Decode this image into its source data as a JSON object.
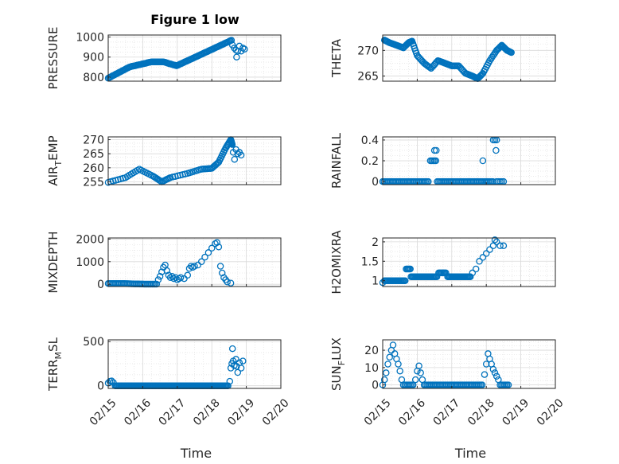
{
  "figure_title": "Figure 1 low",
  "x_ticks": [
    "02/15",
    "02/16",
    "02/17",
    "02/18",
    "02/19",
    "02/20"
  ],
  "xlabel": "Time",
  "marker_color": "#0072BD",
  "chart_data": [
    {
      "type": "scatter",
      "ylabel": "PRESSURE",
      "ylabel_sub": "",
      "ylabel_tail": "",
      "yticks": [
        "800",
        "900",
        "1000"
      ],
      "ylim": [
        780,
        1010
      ],
      "xlim": [
        "02/15",
        "02/20"
      ],
      "grid": true,
      "x": [],
      "y": []
    },
    {
      "type": "scatter",
      "ylabel": "THETA",
      "ylabel_sub": "",
      "ylabel_tail": "",
      "yticks": [
        "265",
        "270"
      ],
      "ylim": [
        264,
        273
      ],
      "xlim": [
        "02/15",
        "02/20"
      ],
      "grid": true,
      "x": [],
      "y": []
    },
    {
      "type": "scatter",
      "ylabel": "AIR",
      "ylabel_sub": "T",
      "ylabel_tail": "EMP",
      "yticks": [
        "255",
        "260",
        "265",
        "270"
      ],
      "ylim": [
        254,
        271
      ],
      "xlim": [
        "02/15",
        "02/20"
      ],
      "grid": true,
      "x": [],
      "y": []
    },
    {
      "type": "scatter",
      "ylabel": "RAINFALL",
      "ylabel_sub": "",
      "ylabel_tail": "",
      "yticks": [
        "0",
        "0.2",
        "0.4"
      ],
      "ylim": [
        -0.03,
        0.43
      ],
      "xlim": [
        "02/15",
        "02/20"
      ],
      "grid": true,
      "x": [],
      "y": []
    },
    {
      "type": "scatter",
      "ylabel": "MIXDEPTH",
      "ylabel_sub": "",
      "ylabel_tail": "",
      "yticks": [
        "0",
        "1000",
        "2000"
      ],
      "ylim": [
        -100,
        2050
      ],
      "xlim": [
        "02/15",
        "02/20"
      ],
      "grid": true,
      "x": [],
      "y": []
    },
    {
      "type": "scatter",
      "ylabel": "H2OMIXRA",
      "ylabel_sub": "",
      "ylabel_tail": "",
      "yticks": [
        "1",
        "1.5",
        "2"
      ],
      "ylim": [
        0.85,
        2.1
      ],
      "xlim": [
        "02/15",
        "02/20"
      ],
      "grid": true,
      "x": [],
      "y": []
    },
    {
      "type": "scatter",
      "ylabel": "TERR",
      "ylabel_sub": "M",
      "ylabel_tail": "SL",
      "yticks": [
        "0",
        "500"
      ],
      "ylim": [
        -30,
        520
      ],
      "xlim": [
        "02/15",
        "02/20"
      ],
      "grid": true,
      "x": [],
      "y": []
    },
    {
      "type": "scatter",
      "ylabel": "SUN",
      "ylabel_sub": "F",
      "ylabel_tail": "LUX",
      "yticks": [
        "0",
        "10",
        "20"
      ],
      "ylim": [
        -2,
        26
      ],
      "xlim": [
        "02/15",
        "02/20"
      ],
      "grid": true,
      "x": [],
      "y": []
    }
  ]
}
